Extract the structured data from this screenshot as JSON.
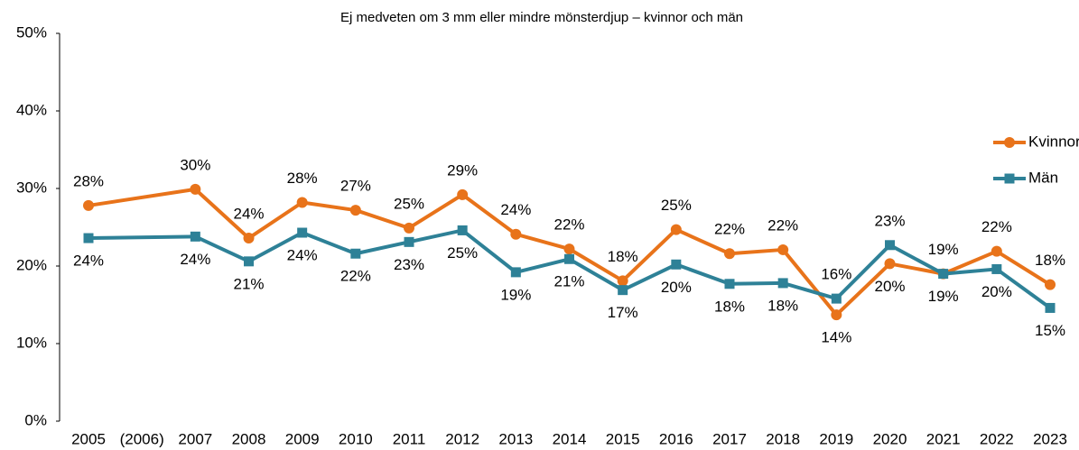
{
  "chart_data": {
    "type": "line",
    "title": "Ej medveten om 3 mm eller mindre mönsterdjup – kvinnor och män",
    "categories": [
      "2005",
      "(2006)",
      "2007",
      "2008",
      "2009",
      "2010",
      "2011",
      "2012",
      "2013",
      "2014",
      "2015",
      "2016",
      "2017",
      "2018",
      "2019",
      "2020",
      "2021",
      "2022",
      "2023"
    ],
    "series": [
      {
        "name": "Kvinnor",
        "color": "#e8731a",
        "marker": "circle",
        "values": [
          27.8,
          null,
          29.9,
          23.6,
          28.2,
          27.2,
          24.9,
          29.2,
          24.1,
          22.2,
          18.1,
          24.7,
          21.6,
          22.1,
          13.7,
          20.3,
          19.0,
          21.9,
          17.6
        ],
        "value_labels": [
          "28%",
          null,
          "30%",
          "24%",
          "28%",
          "27%",
          "25%",
          "29%",
          "24%",
          "22%",
          "18%",
          "25%",
          "22%",
          "22%",
          "14%",
          "20%",
          "19%",
          "22%",
          "18%"
        ]
      },
      {
        "name": "Män",
        "color": "#2e8197",
        "marker": "square",
        "values": [
          23.6,
          null,
          23.8,
          20.6,
          24.3,
          21.6,
          23.1,
          24.6,
          19.2,
          20.9,
          16.9,
          20.2,
          17.7,
          17.8,
          15.8,
          22.7,
          19.0,
          19.6,
          14.6
        ],
        "value_labels": [
          "24%",
          null,
          "24%",
          "21%",
          "24%",
          "22%",
          "23%",
          "25%",
          "19%",
          "21%",
          "17%",
          "20%",
          "18%",
          "18%",
          "16%",
          "23%",
          "19%",
          "20%",
          "15%"
        ]
      }
    ],
    "ylim": [
      0,
      50
    ],
    "yticks": [
      {
        "value": 0,
        "label": "0%"
      },
      {
        "value": 10,
        "label": "10%"
      },
      {
        "value": 20,
        "label": "20%"
      },
      {
        "value": 30,
        "label": "30%"
      },
      {
        "value": 40,
        "label": "40%"
      },
      {
        "value": 50,
        "label": "50%"
      }
    ],
    "grid": false,
    "legend": "upper right"
  }
}
